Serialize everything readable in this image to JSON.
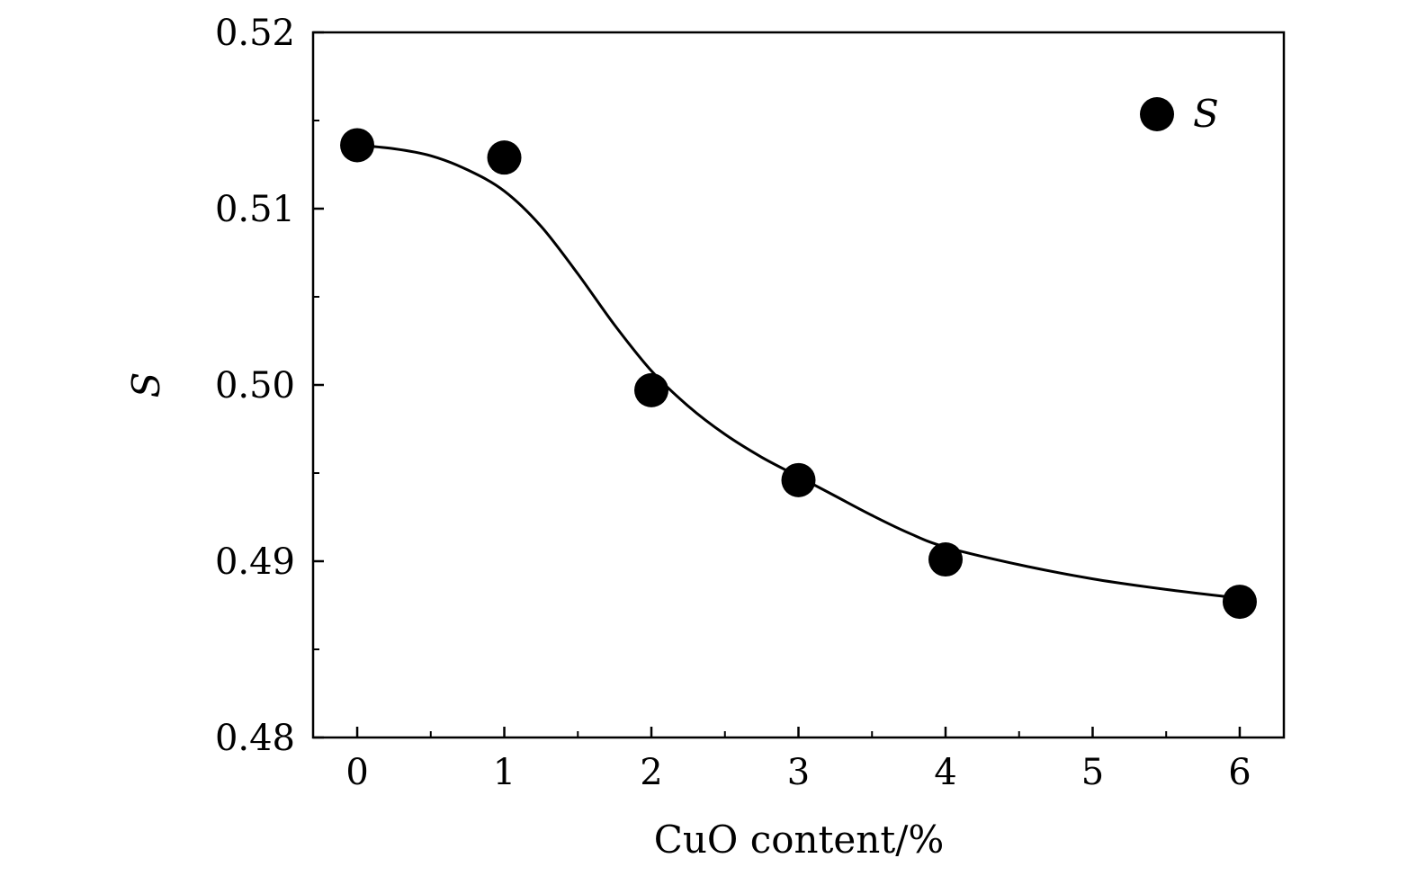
{
  "chart_data": {
    "type": "scatter",
    "title": "",
    "xlabel": "CuO content/%",
    "ylabel": "S",
    "xlim": [
      -0.3,
      6.3
    ],
    "ylim": [
      0.48,
      0.52
    ],
    "xticks": [
      0,
      1,
      2,
      3,
      4,
      5,
      6
    ],
    "xtick_labels": [
      "0",
      "1",
      "2",
      "3",
      "4",
      "5",
      "6"
    ],
    "yticks": [
      0.48,
      0.49,
      0.5,
      0.51,
      0.52
    ],
    "ytick_labels": [
      "0.48",
      "0.49",
      "0.50",
      "0.51",
      "0.52"
    ],
    "x_minor_step": 0.5,
    "y_minor_step": 0.005,
    "grid": false,
    "legend": {
      "position": "top-right",
      "entries": [
        {
          "label": "S",
          "marker": "filled-circle"
        }
      ]
    },
    "series": [
      {
        "name": "S",
        "marker": "filled-circle",
        "color": "#000000",
        "x": [
          0,
          1,
          2,
          3,
          4,
          6
        ],
        "y": [
          0.5136,
          0.5129,
          0.4997,
          0.4946,
          0.4901,
          0.4877
        ]
      }
    ],
    "fit_curve": {
      "name": "fit",
      "color": "#000000",
      "x": [
        0,
        0.25,
        0.5,
        0.75,
        1.0,
        1.25,
        1.5,
        1.75,
        2.0,
        2.25,
        2.5,
        2.75,
        3.0,
        3.25,
        3.5,
        3.75,
        4.0,
        4.5,
        5.0,
        5.5,
        6.0
      ],
      "y": [
        0.5136,
        0.5134,
        0.513,
        0.5122,
        0.511,
        0.509,
        0.5063,
        0.5034,
        0.5008,
        0.4988,
        0.4972,
        0.4959,
        0.4948,
        0.4937,
        0.4926,
        0.4916,
        0.4908,
        0.4898,
        0.489,
        0.4884,
        0.4879
      ]
    }
  }
}
